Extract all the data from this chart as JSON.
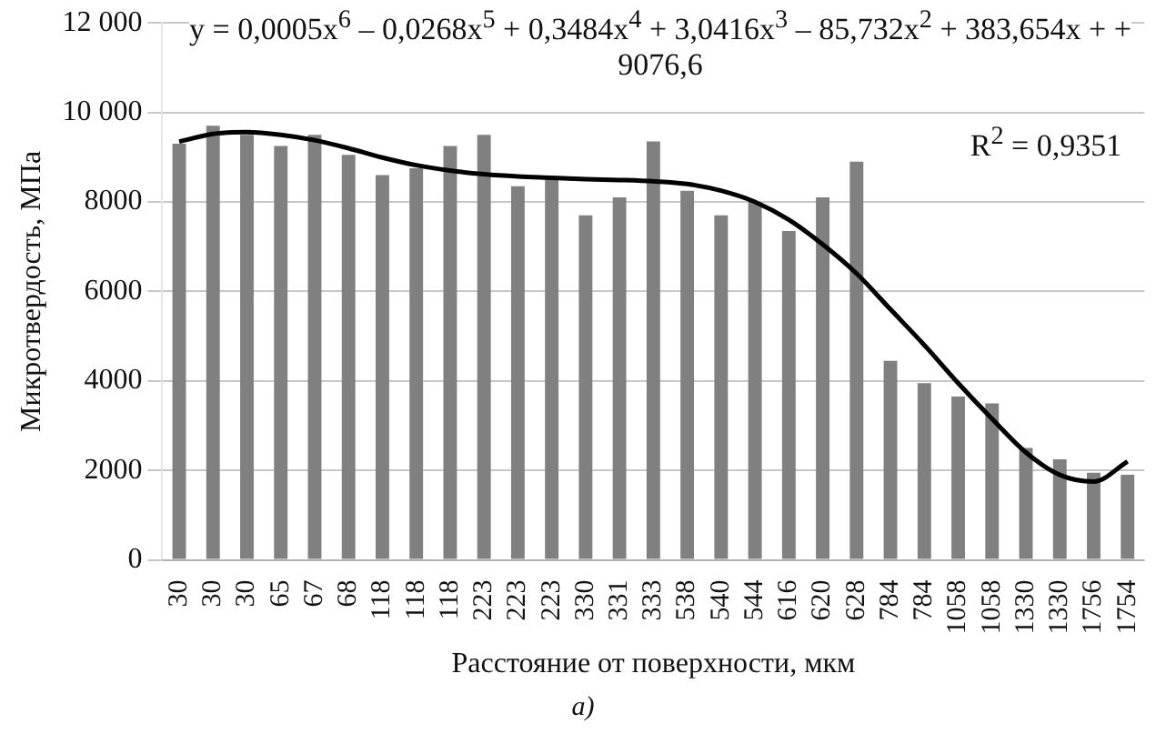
{
  "chart_data": {
    "type": "bar",
    "xlabel": "Расстояние от поверхности, мкм",
    "ylabel": "Микротвердость, МПа",
    "categories": [
      "30",
      "30",
      "30",
      "65",
      "67",
      "68",
      "118",
      "118",
      "118",
      "223",
      "223",
      "223",
      "330",
      "331",
      "333",
      "538",
      "540",
      "544",
      "616",
      "620",
      "628",
      "784",
      "784",
      "1058",
      "1058",
      "1330",
      "1330",
      "1756",
      "1754"
    ],
    "series": [
      {
        "color": "#808080",
        "values": [
          9300,
          9700,
          9500,
          9250,
          9500,
          9050,
          8600,
          8750,
          9250,
          9500,
          8350,
          8500,
          7700,
          8100,
          9350,
          8250,
          7700,
          8000,
          7350,
          8100,
          8900,
          4450,
          3950,
          3650,
          3500,
          2500,
          2250,
          1950,
          1900
        ]
      },
      {
        "type": "line",
        "color": "#000000",
        "values": [
          9350,
          9520,
          9560,
          9500,
          9380,
          9200,
          8990,
          8820,
          8700,
          8620,
          8570,
          8540,
          8510,
          8490,
          8460,
          8400,
          8250,
          8000,
          7600,
          7050,
          6400,
          5600,
          4800,
          3950,
          3150,
          2400,
          1900,
          1750,
          2200
        ]
      }
    ],
    "ylim": [
      0,
      12000
    ],
    "yticks": [
      0,
      2000,
      4000,
      6000,
      8000,
      {
        "value": 10000,
        "label": "10 000"
      },
      {
        "value": 12000,
        "label": "12 000"
      }
    ],
    "grid": "y",
    "legend": false,
    "marker": "none",
    "line_style": "solid",
    "annotations": [
      "y = 0,0005x$^{6}$ – 0,0268x$^{5}$ + 0,3484x$^{4}$ + 3,0416x$^{3}$ – 85,732x$^{2}$ + 383,654x + + 9076,6",
      "R$^{2}$ = 0,9351",
      "а)"
    ]
  }
}
